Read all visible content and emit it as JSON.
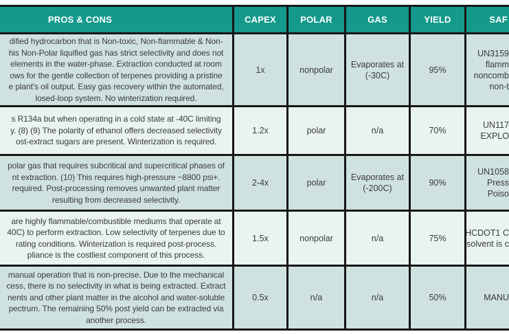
{
  "colors": {
    "header_bg": "#14998b",
    "row_dark": "#cfe2e0",
    "row_light": "#e9f3f2",
    "border": "#161616",
    "header_text": "#ffffff",
    "body_text": "#3b3b3b"
  },
  "table": {
    "headers": {
      "pros_cons": "PROS & CONS",
      "capex": "CAPEX",
      "polar": "POLAR",
      "gas": "GAS",
      "yield": "YIELD",
      "safety": "SAF"
    },
    "rows": [
      {
        "pros": "dified hydrocarbon that is Non-toxic, Non-flammable & Non-\nhis Non-Polar liquified gas has strict selectivity and does not\nelements in the water-phase. Extraction conducted at room\nows for the gentle collection of terpenes providing a pristine\ne plant's oil output. Easy gas recovery within the automated,\nlosed-loop system. No winterization required.",
        "capex": "1x",
        "polar": "nonpolar",
        "gas": "Evaporates at\n(-30C)",
        "yield": "95%",
        "safety": "UN3159\nflamm\nnoncomb\nnon-t"
      },
      {
        "pros": "s R134a but when operating in a cold state at -40C limiting\ny. (8) (9) The polarity of ethanol offers decreased selectivity\nost-extract sugars are present. Winterization is required.",
        "capex": "1.2x",
        "polar": "polar",
        "gas": "n/a",
        "yield": "70%",
        "safety": "UN117\nEXPLO"
      },
      {
        "pros": "polar gas that requires subcritical and supercritical phases of\nnt extraction. (10) This requires high-pressure ~8800 psi+.\nrequired. Post-processing removes unwanted plant matter\nresulting from decreased selectivity.",
        "capex": "2-4x",
        "polar": "polar",
        "gas": "Evaporates at\n(-200C)",
        "yield": "90%",
        "safety": "UN1058\nPress\nPoiso"
      },
      {
        "pros": "are highly flammable/combustible mediums that operate at\n40C) to perform extraction. Low selectivity of terpenes due to\nrating conditions. Winterization is required post-process.\npliance is the costliest component of this process.",
        "capex": "1.5x",
        "polar": "nonpolar",
        "gas": "n/a",
        "yield": "75%",
        "safety": "HCDOT1 C\nsolvent is c"
      },
      {
        "pros": "manual operation that is non-precise. Due to the mechanical\ncess, there is no selectivity in what is being extracted. Extract\nnents and other plant matter in the alcohol and water-soluble\npectrum. The remaining 50% post yield can be extracted via\nanother process.",
        "capex": "0.5x",
        "polar": "n/a",
        "gas": "n/a",
        "yield": "50%",
        "safety": "MANU"
      }
    ]
  }
}
